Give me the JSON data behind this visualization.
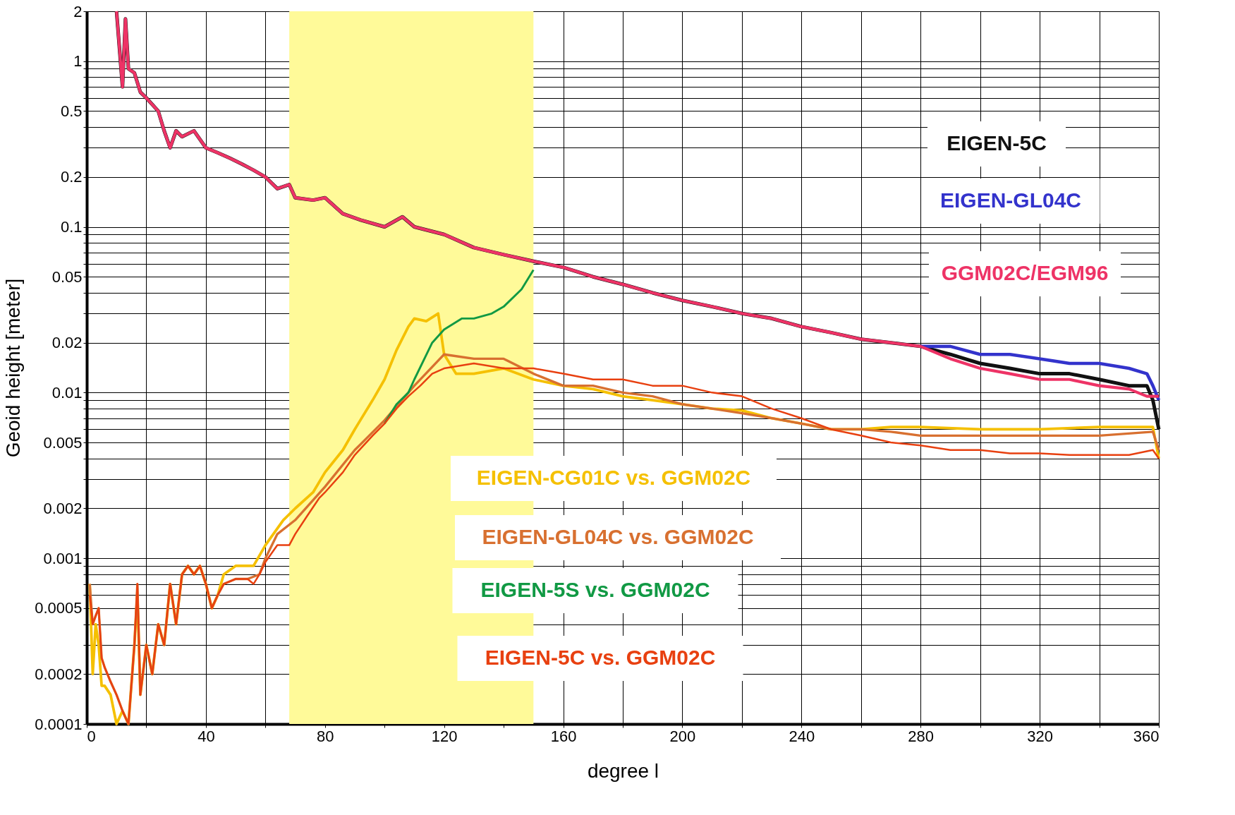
{
  "chart_data": {
    "type": "line",
    "xlabel": "degree l",
    "ylabel": "Geoid height [meter]",
    "log": "y",
    "grid": true,
    "line_style": "solid",
    "marker": "none",
    "xlim": [
      0,
      360
    ],
    "ylim": [
      0.0001,
      2
    ],
    "xticks": [
      0,
      {
        "value": 20,
        "label": null
      },
      40,
      {
        "value": 60,
        "label": null
      },
      80,
      {
        "value": 100,
        "label": null
      },
      120,
      {
        "value": 140,
        "label": null
      },
      160,
      {
        "value": 180,
        "label": null
      },
      200,
      {
        "value": 220,
        "label": null
      },
      240,
      {
        "value": 260,
        "label": null
      },
      280,
      {
        "value": 300,
        "label": null
      },
      320,
      {
        "value": 340,
        "label": null
      },
      360
    ],
    "yticks": [
      0.0001,
      0.0002,
      {
        "value": 0.0003,
        "label": null
      },
      {
        "value": 0.0004,
        "label": null
      },
      0.0005,
      {
        "value": 0.0006,
        "label": null
      },
      {
        "value": 0.0007,
        "label": null
      },
      {
        "value": 0.0008,
        "label": null
      },
      {
        "value": 0.0009,
        "label": null
      },
      0.001,
      0.002,
      {
        "value": 0.003,
        "label": null
      },
      {
        "value": 0.004,
        "label": null
      },
      0.005,
      {
        "value": 0.006,
        "label": null
      },
      {
        "value": 0.007,
        "label": null
      },
      {
        "value": 0.008,
        "label": null
      },
      {
        "value": 0.009,
        "label": null
      },
      0.01,
      0.02,
      {
        "value": 0.03,
        "label": null
      },
      {
        "value": 0.04,
        "label": null
      },
      0.05,
      {
        "value": 0.06,
        "label": null
      },
      {
        "value": 0.07,
        "label": null
      },
      {
        "value": 0.08,
        "label": null
      },
      {
        "value": 0.09,
        "label": null
      },
      0.1,
      0.2,
      {
        "value": 0.3,
        "label": null
      },
      {
        "value": 0.4,
        "label": null
      },
      0.5,
      {
        "value": 0.6,
        "label": null
      },
      {
        "value": 0.7,
        "label": null
      },
      {
        "value": 0.8,
        "label": null
      },
      {
        "value": 0.9,
        "label": null
      },
      1,
      2
    ],
    "bands": [
      {
        "axis": "x",
        "from": 68,
        "to": 150,
        "color": "#fffa99"
      }
    ],
    "series": [
      {
        "name": "EIGEN-5C",
        "color": "#111111",
        "x": [
          10,
          12,
          13,
          14,
          16,
          18,
          20,
          24,
          26,
          28,
          30,
          32,
          36,
          40,
          44,
          48,
          52,
          56,
          60,
          64,
          68,
          70,
          76,
          80,
          86,
          92,
          100,
          106,
          110,
          120,
          130,
          140,
          150,
          160,
          170,
          180,
          190,
          200,
          210,
          220,
          230,
          240,
          250,
          260,
          270,
          280,
          290,
          300,
          310,
          320,
          330,
          340,
          350,
          356,
          358,
          360
        ],
        "values": [
          2,
          0.7,
          1.8,
          0.9,
          0.85,
          0.65,
          0.6,
          0.5,
          0.38,
          0.3,
          0.38,
          0.35,
          0.38,
          0.3,
          0.28,
          0.26,
          0.24,
          0.22,
          0.2,
          0.17,
          0.18,
          0.15,
          0.145,
          0.15,
          0.12,
          0.11,
          0.1,
          0.115,
          0.1,
          0.09,
          0.075,
          0.068,
          0.062,
          0.057,
          0.05,
          0.045,
          0.04,
          0.036,
          0.033,
          0.03,
          0.028,
          0.025,
          0.023,
          0.021,
          0.02,
          0.019,
          0.017,
          0.015,
          0.014,
          0.013,
          0.013,
          0.012,
          0.011,
          0.011,
          0.009,
          0.006
        ]
      },
      {
        "name": "EIGEN-GL04C",
        "color": "#3333cc",
        "x": [
          280,
          290,
          300,
          310,
          320,
          330,
          340,
          350,
          356,
          358,
          360
        ],
        "values": [
          0.019,
          0.019,
          0.017,
          0.017,
          0.016,
          0.015,
          0.015,
          0.014,
          0.013,
          0.011,
          0.009
        ]
      },
      {
        "name": "GGM02C/EGM96",
        "color": "#ee3366",
        "x": [
          10,
          12,
          13,
          14,
          16,
          18,
          20,
          24,
          26,
          28,
          30,
          32,
          36,
          40,
          44,
          48,
          52,
          56,
          60,
          64,
          68,
          70,
          76,
          80,
          86,
          92,
          100,
          106,
          110,
          120,
          130,
          140,
          150,
          160,
          170,
          180,
          190,
          200,
          210,
          220,
          230,
          240,
          250,
          260,
          270,
          280,
          290,
          300,
          310,
          320,
          330,
          340,
          350,
          356,
          358,
          360
        ],
        "values": [
          2,
          0.7,
          1.8,
          0.9,
          0.85,
          0.65,
          0.6,
          0.5,
          0.38,
          0.3,
          0.38,
          0.35,
          0.38,
          0.3,
          0.28,
          0.26,
          0.24,
          0.22,
          0.2,
          0.17,
          0.18,
          0.15,
          0.145,
          0.15,
          0.12,
          0.11,
          0.1,
          0.115,
          0.1,
          0.09,
          0.075,
          0.068,
          0.062,
          0.057,
          0.05,
          0.045,
          0.04,
          0.036,
          0.033,
          0.03,
          0.028,
          0.025,
          0.023,
          0.021,
          0.02,
          0.019,
          0.016,
          0.014,
          0.013,
          0.012,
          0.012,
          0.011,
          0.0105,
          0.0095,
          0.0095,
          0.0095
        ]
      },
      {
        "name": "EIGEN-CG01C vs. GGM02C",
        "color": "#f5c000",
        "x": [
          1,
          2,
          3,
          4,
          5,
          6,
          8,
          10,
          12,
          14,
          16,
          17,
          18,
          20,
          22,
          24,
          26,
          28,
          30,
          32,
          34,
          36,
          38,
          40,
          42,
          44,
          46,
          50,
          56,
          60,
          66,
          70,
          76,
          80,
          86,
          90,
          96,
          100,
          104,
          108,
          110,
          114,
          118,
          120,
          124,
          130,
          140,
          150,
          160,
          170,
          180,
          190,
          200,
          210,
          220,
          230,
          240,
          250,
          260,
          270,
          280,
          300,
          320,
          340,
          358,
          360
        ],
        "values": [
          0.0007,
          0.0002,
          0.0004,
          0.0003,
          0.00017,
          0.00017,
          0.00015,
          0.0001,
          0.00012,
          0.0001,
          0.0003,
          0.0006,
          0.00015,
          0.0003,
          0.0002,
          0.0004,
          0.0003,
          0.0007,
          0.0004,
          0.0008,
          0.0009,
          0.0008,
          0.0009,
          0.0007,
          0.0005,
          0.0006,
          0.0008,
          0.0009,
          0.0009,
          0.0012,
          0.0017,
          0.002,
          0.0025,
          0.0033,
          0.0045,
          0.006,
          0.009,
          0.012,
          0.018,
          0.025,
          0.028,
          0.027,
          0.03,
          0.017,
          0.013,
          0.013,
          0.014,
          0.012,
          0.011,
          0.0105,
          0.0095,
          0.009,
          0.0085,
          0.008,
          0.0078,
          0.007,
          0.0065,
          0.006,
          0.006,
          0.0062,
          0.0062,
          0.006,
          0.006,
          0.0062,
          0.0062,
          0.004
        ]
      },
      {
        "name": "EIGEN-GL04C vs. GGM02C",
        "color": "#d87030",
        "x": [
          1,
          2,
          3,
          4,
          5,
          6,
          8,
          10,
          12,
          14,
          16,
          17,
          18,
          20,
          22,
          24,
          26,
          28,
          30,
          32,
          34,
          36,
          38,
          40,
          42,
          44,
          46,
          50,
          54,
          58,
          60,
          64,
          70,
          80,
          90,
          100,
          110,
          120,
          130,
          140,
          150,
          160,
          170,
          180,
          190,
          200,
          210,
          220,
          230,
          240,
          250,
          260,
          270,
          280,
          290,
          300,
          320,
          340,
          358,
          360
        ],
        "values": [
          0.0007,
          0.0004,
          0.00045,
          0.0005,
          0.00025,
          0.00022,
          0.00018,
          0.00015,
          0.00012,
          0.0001,
          0.0003,
          0.0007,
          0.00015,
          0.0003,
          0.0002,
          0.0004,
          0.0003,
          0.0007,
          0.0004,
          0.0008,
          0.0009,
          0.0008,
          0.0009,
          0.0007,
          0.0005,
          0.0006,
          0.0007,
          0.00075,
          0.00075,
          0.0008,
          0.001,
          0.0014,
          0.0017,
          0.0027,
          0.0045,
          0.0068,
          0.011,
          0.017,
          0.016,
          0.016,
          0.013,
          0.011,
          0.011,
          0.01,
          0.0095,
          0.0085,
          0.008,
          0.0075,
          0.007,
          0.0065,
          0.006,
          0.006,
          0.0058,
          0.0055,
          0.0055,
          0.0055,
          0.0055,
          0.0055,
          0.0058,
          0.0045
        ]
      },
      {
        "name": "EIGEN-5S vs. GGM02C",
        "color": "#119944",
        "x": [
          100,
          104,
          108,
          110,
          116,
          120,
          126,
          130,
          136,
          140,
          146,
          150
        ],
        "values": [
          0.0065,
          0.0085,
          0.01,
          0.012,
          0.02,
          0.024,
          0.028,
          0.028,
          0.03,
          0.033,
          0.042,
          0.055
        ]
      },
      {
        "name": "EIGEN-5C vs. GGM02C",
        "color": "#e84010",
        "x": [
          1,
          2,
          3,
          4,
          5,
          6,
          8,
          10,
          12,
          14,
          16,
          17,
          18,
          20,
          22,
          24,
          26,
          28,
          30,
          32,
          34,
          36,
          38,
          40,
          42,
          44,
          46,
          50,
          54,
          56,
          58,
          60,
          64,
          68,
          70,
          74,
          78,
          80,
          86,
          90,
          96,
          100,
          104,
          108,
          112,
          116,
          120,
          130,
          140,
          150,
          160,
          170,
          180,
          190,
          200,
          210,
          220,
          230,
          240,
          250,
          260,
          270,
          280,
          290,
          300,
          310,
          320,
          330,
          340,
          350,
          358,
          360
        ],
        "values": [
          0.0006,
          0.0004,
          0.00045,
          0.0005,
          0.00025,
          0.00022,
          0.00018,
          0.00015,
          0.00012,
          0.0001,
          0.0003,
          0.0007,
          0.00015,
          0.0003,
          0.0002,
          0.0004,
          0.0003,
          0.0007,
          0.0004,
          0.0008,
          0.0009,
          0.0008,
          0.0009,
          0.0007,
          0.0005,
          0.0006,
          0.0007,
          0.00075,
          0.00075,
          0.0007,
          0.0008,
          0.00095,
          0.0012,
          0.0012,
          0.0014,
          0.0018,
          0.0023,
          0.0025,
          0.0033,
          0.0042,
          0.0055,
          0.0065,
          0.008,
          0.0095,
          0.011,
          0.013,
          0.014,
          0.015,
          0.014,
          0.014,
          0.013,
          0.012,
          0.012,
          0.011,
          0.011,
          0.01,
          0.0095,
          0.008,
          0.007,
          0.006,
          0.0055,
          0.005,
          0.0048,
          0.0045,
          0.0045,
          0.0043,
          0.0043,
          0.0042,
          0.0042,
          0.0042,
          0.0045,
          0.004
        ]
      }
    ]
  }
}
